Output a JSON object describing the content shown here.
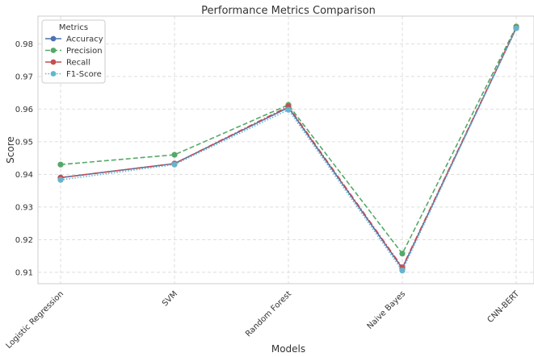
{
  "chart_data": {
    "type": "line",
    "title": "Performance Metrics Comparison",
    "xlabel": "Models",
    "ylabel": "Score",
    "categories": [
      "Logistic Regression",
      "SVM",
      "Random Forest",
      "Naive Bayes",
      "CNN-BERT"
    ],
    "ylim": [
      0.9065,
      0.9885
    ],
    "yticks": [
      "0.91",
      "0.92",
      "0.93",
      "0.94",
      "0.95",
      "0.96",
      "0.97",
      "0.98"
    ],
    "grid": true,
    "legend": {
      "title": "Metrics",
      "placement": "top-left"
    },
    "series": [
      {
        "name": "Accuracy",
        "color": "#4c72b0",
        "dash": "solid",
        "values": [
          0.939,
          0.9433,
          0.9605,
          0.9112,
          0.9848
        ]
      },
      {
        "name": "Precision",
        "color": "#55a868",
        "dash": "dashed",
        "values": [
          0.943,
          0.946,
          0.9613,
          0.9157,
          0.9853
        ]
      },
      {
        "name": "Recall",
        "color": "#c44e52",
        "dash": "dashdot",
        "values": [
          0.939,
          0.9433,
          0.9608,
          0.9115,
          0.985
        ]
      },
      {
        "name": "F1-Score",
        "color": "#64b5cd",
        "dash": "dotted",
        "values": [
          0.9383,
          0.943,
          0.9598,
          0.9105,
          0.9848
        ]
      }
    ]
  }
}
